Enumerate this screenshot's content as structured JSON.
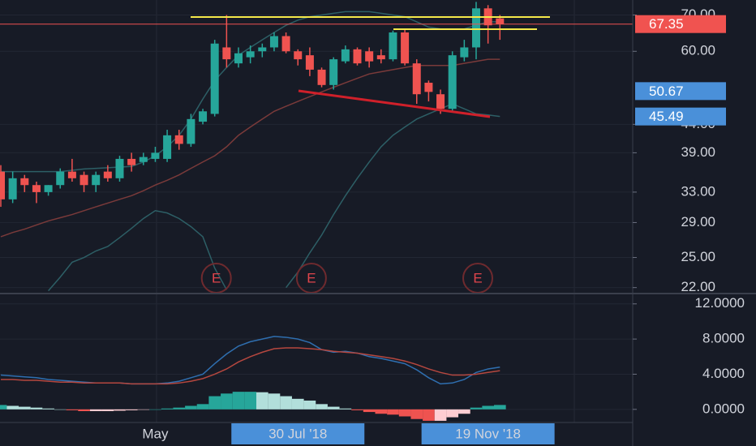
{
  "chart_data": [
    {
      "type": "candlestick",
      "up_color": "#26a69a",
      "down_color": "#ef5350",
      "log_scale": true,
      "grid": true,
      "ylim": [
        21.6,
        74.6
      ],
      "yticks": [
        {
          "value": 70,
          "label": "70.00"
        },
        {
          "value": 60,
          "label": "60.00"
        },
        {
          "value": 44,
          "label": "44.00"
        },
        {
          "value": 39,
          "label": "39.00"
        },
        {
          "value": 33,
          "label": "33.00"
        },
        {
          "value": 29,
          "label": "29.00"
        },
        {
          "value": 25,
          "label": "25.00"
        },
        {
          "value": 22,
          "label": "22.00"
        }
      ],
      "open": [
        36,
        32,
        35,
        34,
        33,
        34,
        36,
        35.5,
        34,
        36,
        35,
        38,
        37.5,
        38,
        38,
        42,
        40.5,
        44.5,
        46,
        61,
        57,
        58.5,
        60,
        61,
        64,
        60,
        59,
        55.5,
        52,
        57.5,
        60.5,
        60,
        59,
        58,
        65,
        57,
        52.5,
        50,
        47,
        58.5,
        61,
        72,
        69
      ],
      "high": [
        37,
        36,
        35.5,
        34.5,
        34,
        36.5,
        38,
        36,
        36,
        37,
        38.5,
        39,
        39,
        40,
        43,
        43,
        46,
        47,
        63,
        70,
        61,
        61.5,
        62,
        65,
        65,
        60.5,
        61,
        56,
        58.5,
        61.5,
        61,
        61,
        60.5,
        65.5,
        66,
        58,
        53,
        51,
        60,
        63,
        74,
        73,
        70
      ],
      "low": [
        31,
        31.5,
        33,
        31.5,
        32.5,
        33.5,
        34.5,
        33,
        33,
        34.5,
        34.5,
        36,
        37,
        37.5,
        37.5,
        39.5,
        40,
        44,
        45.5,
        56,
        56,
        57,
        58.5,
        60,
        59.5,
        56.5,
        54,
        51.5,
        51,
        57,
        56.5,
        56,
        57,
        57.5,
        56.5,
        48,
        48.5,
        46,
        46.5,
        57.5,
        58,
        62,
        63
      ],
      "close": [
        32,
        35,
        34,
        33,
        34,
        36,
        35,
        34,
        35.5,
        35,
        38,
        37,
        38.3,
        39,
        42,
        40.5,
        45,
        46.5,
        62,
        58,
        59.5,
        60,
        61,
        64,
        60,
        58,
        55.5,
        52,
        58,
        60.5,
        57,
        57.5,
        58,
        65,
        57,
        50,
        50.5,
        47,
        59,
        61,
        72,
        67,
        67.35
      ],
      "overlays": [
        {
          "color": "#2d5f66",
          "values": [
            36,
            36,
            36,
            36,
            36,
            36,
            36.2,
            36.4,
            36.5,
            36.6,
            36.7,
            36.8,
            37.5,
            38.5,
            40,
            42,
            45,
            49,
            53,
            56,
            59,
            61,
            63,
            65,
            67,
            68.5,
            69.5,
            70,
            70.5,
            71,
            71,
            71,
            70.5,
            70,
            69.5,
            68,
            66.5,
            66,
            66,
            66,
            67,
            68,
            68
          ]
        },
        {
          "color": "#7a3a3a",
          "values": [
            27.3,
            27.8,
            28.2,
            28.7,
            29.2,
            29.6,
            30,
            30.5,
            31,
            31.5,
            32,
            32.5,
            33.2,
            34,
            34.7,
            35.5,
            36.5,
            37.5,
            38.5,
            40,
            42,
            43.5,
            45,
            46.5,
            47.5,
            48.5,
            49.5,
            50.5,
            51.5,
            52.5,
            53.5,
            54.5,
            55,
            55.5,
            56,
            56.5,
            56.5,
            56.5,
            56.5,
            57,
            57.5,
            58,
            58
          ]
        },
        {
          "color": "#2d5f66",
          "values": [
            null,
            null,
            null,
            null,
            21.7,
            23,
            24.5,
            25,
            25.7,
            26.2,
            27.2,
            28.3,
            29.5,
            30.5,
            30.2,
            29.5,
            28.5,
            27.3,
            23.9,
            21.8,
            null,
            null,
            null,
            null,
            22,
            23.5,
            25.5,
            27.5,
            30,
            32.5,
            35,
            37.5,
            40,
            42,
            43.5,
            45,
            46,
            47,
            48,
            47,
            46,
            45.8,
            45.5
          ]
        }
      ],
      "events": [
        null,
        null,
        null,
        null,
        null,
        null,
        null,
        null,
        null,
        null,
        null,
        null,
        null,
        null,
        null,
        null,
        null,
        null,
        "E",
        null,
        null,
        null,
        null,
        null,
        null,
        null,
        "E",
        null,
        null,
        null,
        null,
        null,
        null,
        null,
        null,
        null,
        null,
        null,
        null,
        null,
        "E",
        null,
        null
      ],
      "price_labels": [
        {
          "value": 67.35,
          "color": "#f05350",
          "line": true
        },
        {
          "value": 50.67,
          "color": "#4a90d9",
          "line": false
        },
        {
          "value": 45.49,
          "color": "#4a90d9",
          "line": false
        }
      ]
    },
    {
      "type": "macd",
      "ylim": [
        -1.4,
        12.9
      ],
      "yticks": [
        {
          "value": 12,
          "label": "12.0000"
        },
        {
          "value": 8,
          "label": "8.0000"
        },
        {
          "value": 4,
          "label": "4.0000"
        },
        {
          "value": 0,
          "label": "0.0000"
        }
      ],
      "series": [
        {
          "color": "#2f6fb0",
          "values": [
            3.9,
            3.8,
            3.7,
            3.6,
            3.4,
            3.3,
            3.2,
            3.1,
            3.0,
            3.0,
            3.0,
            2.9,
            2.9,
            2.9,
            3.0,
            3.2,
            3.6,
            4.0,
            5.2,
            6.3,
            7.2,
            7.7,
            8.0,
            8.3,
            8.2,
            8.0,
            7.6,
            6.8,
            6.5,
            6.6,
            6.4,
            6.0,
            5.8,
            5.5,
            5.2,
            4.5,
            3.6,
            2.9,
            3.0,
            3.4,
            4.2,
            4.6,
            4.8
          ]
        },
        {
          "color": "#b5473f",
          "values": [
            3.4,
            3.4,
            3.3,
            3.3,
            3.2,
            3.1,
            3.1,
            3.0,
            3.0,
            3.0,
            3.0,
            2.9,
            2.9,
            2.9,
            2.9,
            3.0,
            3.2,
            3.5,
            4.0,
            4.6,
            5.4,
            6.0,
            6.5,
            6.9,
            7.0,
            7.0,
            6.9,
            6.8,
            6.6,
            6.5,
            6.4,
            6.2,
            6.0,
            5.8,
            5.5,
            5.1,
            4.6,
            4.2,
            3.9,
            3.9,
            4.0,
            4.2,
            4.4
          ]
        }
      ],
      "histogram": {
        "colors": [
          "#26a69a",
          "#b2dfdb",
          "#ffcdd2",
          "#ef5350"
        ],
        "values": [
          0.5,
          0.4,
          0.3,
          0.2,
          0.1,
          0,
          -0.1,
          -0.2,
          -0.2,
          -0.2,
          -0.15,
          -0.1,
          -0.05,
          0,
          0.1,
          0.2,
          0.4,
          0.6,
          1.5,
          1.8,
          2.0,
          2.0,
          1.95,
          1.8,
          1.5,
          1.2,
          1.0,
          0.6,
          0.3,
          0.1,
          -0.1,
          -0.3,
          -0.5,
          -0.6,
          -0.8,
          -1.1,
          -1.3,
          -1.3,
          -0.9,
          -0.5,
          0.2,
          0.4,
          0.5
        ]
      },
      "categories": [
        null,
        null,
        null,
        null,
        null,
        null,
        null,
        null,
        null,
        null,
        null,
        null,
        null,
        "May",
        null,
        null,
        null,
        null,
        null,
        null,
        null,
        null,
        null,
        null,
        null,
        "30 Jul '18",
        null,
        null,
        null,
        null,
        null,
        null,
        null,
        null,
        null,
        null,
        null,
        null,
        null,
        null,
        null,
        "19 Nov '18",
        null
      ],
      "highlighted": [
        25,
        41
      ],
      "highlight_color": "#4a90d9"
    }
  ]
}
